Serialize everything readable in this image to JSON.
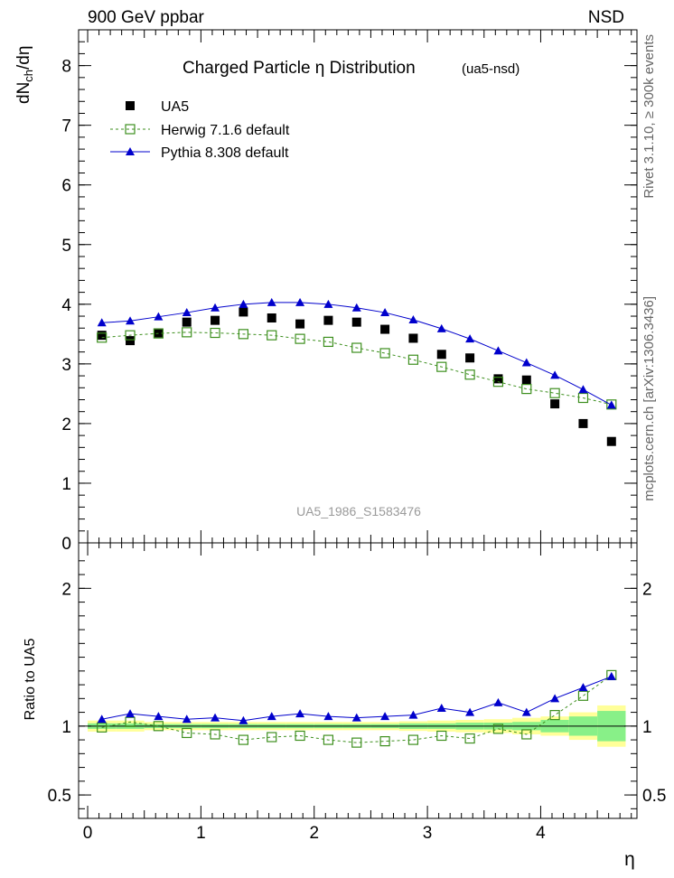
{
  "header": {
    "left": "900 GeV ppbar",
    "right": "NSD"
  },
  "side_labels": {
    "rivet": "Rivet 3.1.10, ≥ 300k events",
    "mcplots": "mcplots.cern.ch [arXiv:1306.3436]"
  },
  "chart_data": [
    {
      "type": "scatter",
      "title": "Charged Particle  η Distribution",
      "title_tag": "(ua5-nsd)",
      "watermark": "UA5_1986_S1583476",
      "ylabel": "dN_ch/dη",
      "xlim": [
        -0.08,
        4.85
      ],
      "ylim": [
        0,
        8.6
      ],
      "yticks": [
        0,
        1,
        2,
        3,
        4,
        5,
        6,
        7,
        8
      ],
      "legend_position": "top-left",
      "x": [
        0.125,
        0.375,
        0.625,
        0.875,
        1.125,
        1.375,
        1.625,
        1.875,
        2.125,
        2.375,
        2.625,
        2.875,
        3.125,
        3.375,
        3.625,
        3.875,
        4.125,
        4.375,
        4.625
      ],
      "series": [
        {
          "name": "UA5",
          "style": "data",
          "color": "#000000",
          "values": [
            3.48,
            3.39,
            3.52,
            3.7,
            3.73,
            3.87,
            3.77,
            3.67,
            3.73,
            3.7,
            3.58,
            3.43,
            3.16,
            3.1,
            2.75,
            2.73,
            2.33,
            2.0,
            1.7
          ]
        },
        {
          "name": "Herwig 7.1.6 default",
          "style": "open-square-dashed",
          "color": "#3d8f1e",
          "values": [
            3.44,
            3.48,
            3.51,
            3.53,
            3.52,
            3.5,
            3.48,
            3.42,
            3.37,
            3.27,
            3.18,
            3.07,
            2.95,
            2.82,
            2.7,
            2.58,
            2.51,
            2.43,
            2.32
          ]
        },
        {
          "name": "Pythia 8.308 default",
          "style": "filled-triangle-solid",
          "color": "#0000cc",
          "values": [
            3.69,
            3.72,
            3.79,
            3.86,
            3.94,
            4.0,
            4.03,
            4.03,
            4.0,
            3.94,
            3.86,
            3.74,
            3.59,
            3.42,
            3.22,
            3.02,
            2.81,
            2.57,
            2.31
          ]
        }
      ]
    },
    {
      "type": "line",
      "ylabel": "Ratio to UA5",
      "xlabel": "η",
      "xlim": [
        -0.08,
        4.85
      ],
      "xticks": [
        0,
        1,
        2,
        3,
        4
      ],
      "ylim": [
        0.33,
        2.33
      ],
      "yticks": [
        0.5,
        1,
        2
      ],
      "x": [
        0.125,
        0.375,
        0.625,
        0.875,
        1.125,
        1.375,
        1.625,
        1.875,
        2.125,
        2.375,
        2.625,
        2.875,
        3.125,
        3.375,
        3.625,
        3.875,
        4.125,
        4.375,
        4.625
      ],
      "band_edges": [
        0,
        0.25,
        0.5,
        0.75,
        1.0,
        1.25,
        1.5,
        1.75,
        2.0,
        2.25,
        2.5,
        2.75,
        3.0,
        3.25,
        3.5,
        3.75,
        4.0,
        4.25,
        4.5,
        4.75
      ],
      "band_outer": [
        0.04,
        0.04,
        0.03,
        0.03,
        0.03,
        0.03,
        0.03,
        0.03,
        0.03,
        0.03,
        0.03,
        0.035,
        0.04,
        0.045,
        0.05,
        0.06,
        0.07,
        0.1,
        0.15
      ],
      "band_inner": [
        0.02,
        0.02,
        0.015,
        0.015,
        0.015,
        0.015,
        0.015,
        0.015,
        0.015,
        0.015,
        0.015,
        0.02,
        0.02,
        0.025,
        0.025,
        0.03,
        0.045,
        0.07,
        0.11
      ],
      "series": [
        {
          "name": "Herwig 7.1.6 default",
          "style": "open-square-dashed",
          "color": "#3d8f1e",
          "values": [
            0.99,
            1.03,
            1.0,
            0.95,
            0.94,
            0.9,
            0.92,
            0.93,
            0.9,
            0.88,
            0.89,
            0.9,
            0.93,
            0.91,
            0.98,
            0.94,
            1.08,
            1.22,
            1.37
          ]
        },
        {
          "name": "Pythia 8.308 default",
          "style": "filled-triangle-solid",
          "color": "#0000cc",
          "values": [
            1.05,
            1.09,
            1.07,
            1.05,
            1.06,
            1.04,
            1.07,
            1.09,
            1.07,
            1.06,
            1.07,
            1.08,
            1.13,
            1.1,
            1.17,
            1.1,
            1.2,
            1.28,
            1.36
          ]
        }
      ]
    }
  ]
}
